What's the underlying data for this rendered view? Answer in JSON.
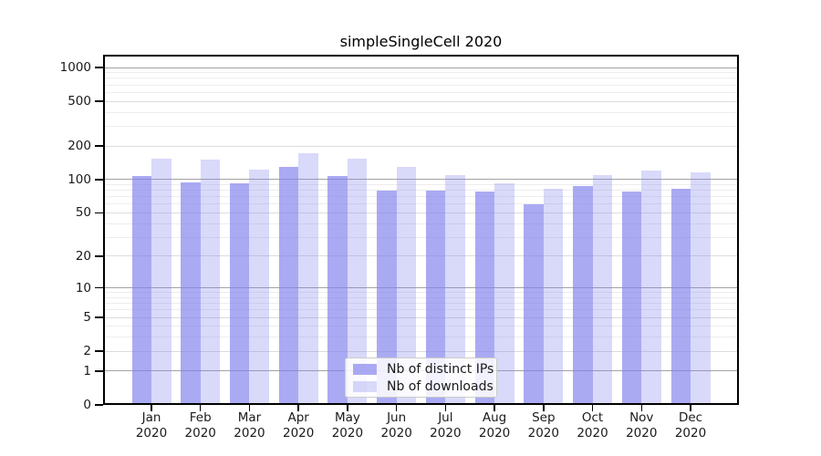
{
  "chart_data": {
    "type": "bar",
    "title": "simpleSingleCell 2020",
    "categories": [
      "Jan 2020",
      "Feb 2020",
      "Mar 2020",
      "Apr 2020",
      "May 2020",
      "Jun 2020",
      "Jul 2020",
      "Aug 2020",
      "Sep 2020",
      "Oct 2020",
      "Nov 2020",
      "Dec 2020"
    ],
    "series": [
      {
        "name": "Nb of distinct IPs",
        "color": "rgba(130,130,238,0.68)",
        "values": [
          107,
          95,
          93,
          131,
          108,
          80,
          79,
          78,
          60,
          87,
          78,
          82
        ]
      },
      {
        "name": "Nb of downloads",
        "color": "rgba(130,130,238,0.30)",
        "values": [
          153,
          150,
          123,
          171,
          153,
          129,
          110,
          92,
          82,
          110,
          120,
          117
        ]
      }
    ],
    "yscale": "symlog",
    "ylim": [
      0,
      1300
    ],
    "yticks": [
      0,
      1,
      2,
      5,
      10,
      20,
      50,
      100,
      200,
      500,
      1000
    ],
    "major_gridline_values": [
      1,
      10,
      100,
      1000
    ],
    "minor_gridlines": [
      3,
      4,
      6,
      7,
      8,
      9,
      30,
      40,
      60,
      70,
      80,
      90,
      300,
      400,
      600,
      700,
      800,
      900
    ],
    "grid": true,
    "legend_position": "bottom-center",
    "colors": {
      "bar_dark": "rgba(130,130,238,0.68)",
      "bar_light": "rgba(130,130,238,0.30)",
      "grid_major": "#a3a3a3",
      "grid_mid": "#dcdcdc",
      "grid_minor": "#ededed",
      "axis": "#000000"
    }
  }
}
